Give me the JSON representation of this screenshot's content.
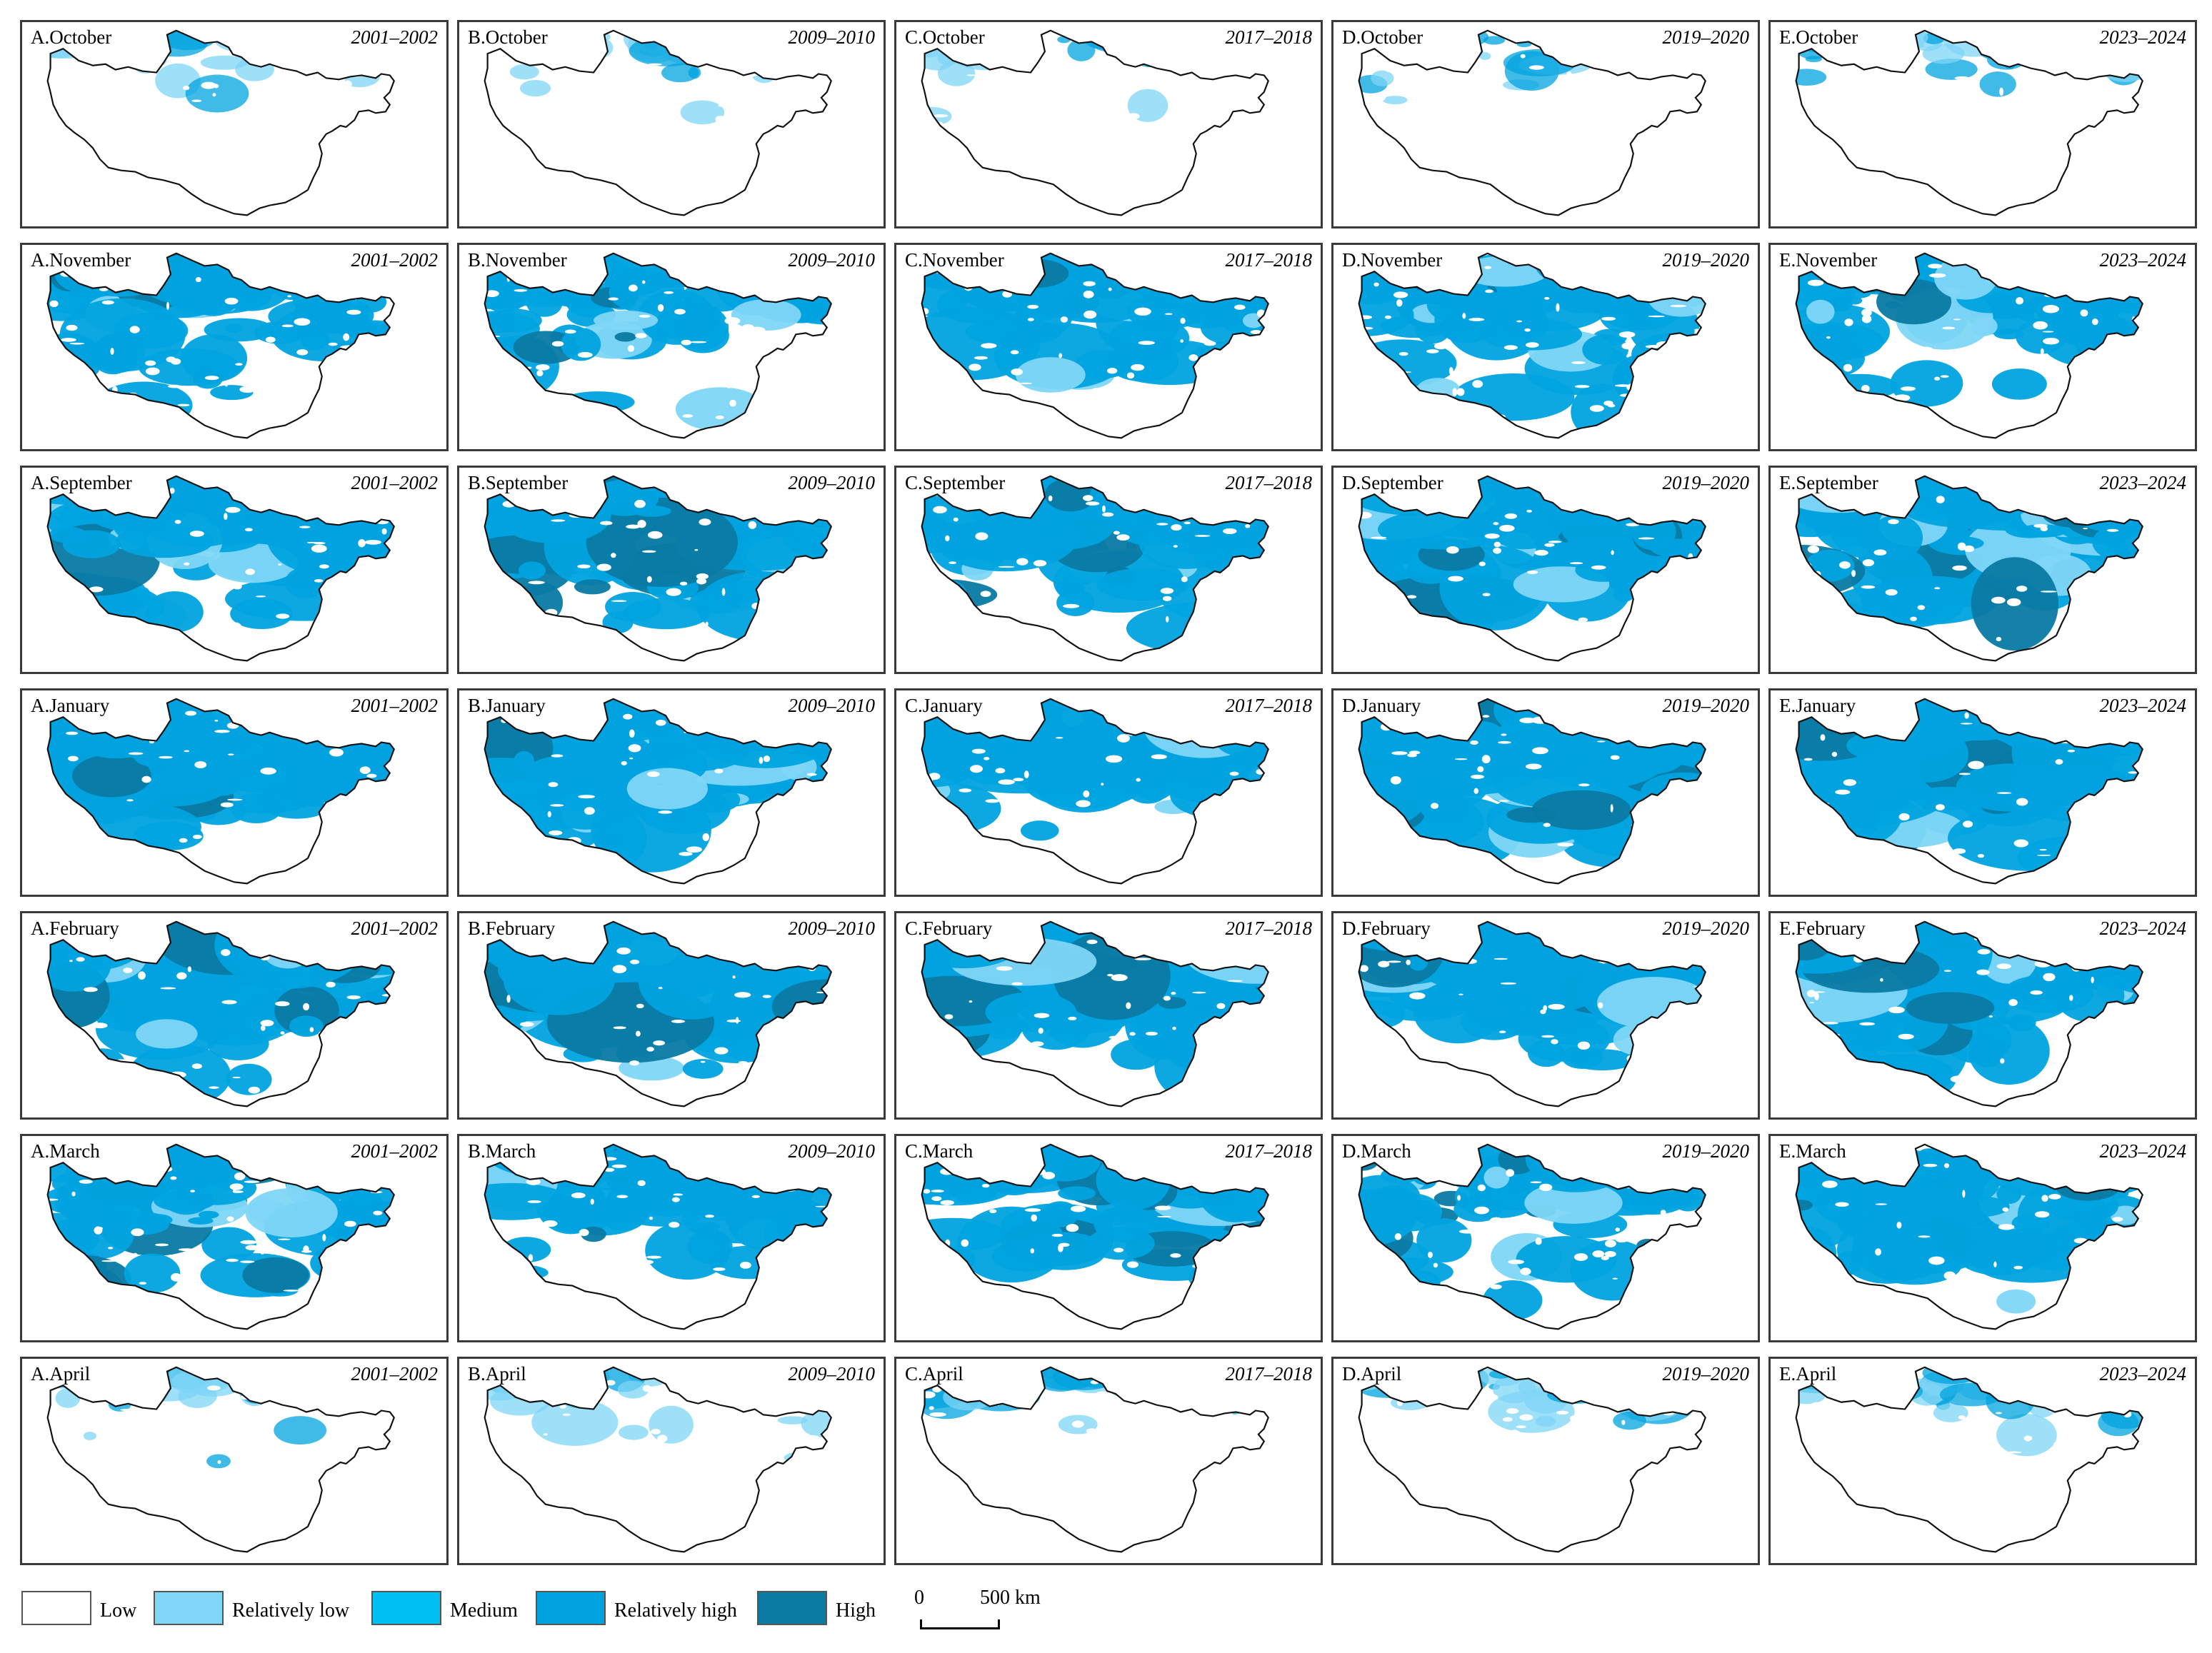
{
  "years": [
    "2001–2002",
    "2009–2010",
    "2017–2018",
    "2019–2020",
    "2023–2024"
  ],
  "letters": [
    "A",
    "B",
    "C",
    "D",
    "E"
  ],
  "rows": [
    {
      "month": "October",
      "level": 0.1
    },
    {
      "month": "November",
      "level": 0.55
    },
    {
      "month": "September",
      "level": 0.8
    },
    {
      "month": "January",
      "level": 0.9
    },
    {
      "month": "February",
      "level": 0.88
    },
    {
      "month": "March",
      "level": 0.6
    },
    {
      "month": "April",
      "level": 0.15
    }
  ],
  "legend": [
    {
      "label": "Low",
      "color": "#ffffff"
    },
    {
      "label": "Relatively low",
      "color": "#7fd6f7"
    },
    {
      "label": "Medium",
      "color": "#00bff2"
    },
    {
      "label": "Relatively high",
      "color": "#00a3df"
    },
    {
      "label": "High",
      "color": "#0a7aa3"
    }
  ],
  "scalebar": {
    "zero": "0",
    "distance": "500 km"
  }
}
